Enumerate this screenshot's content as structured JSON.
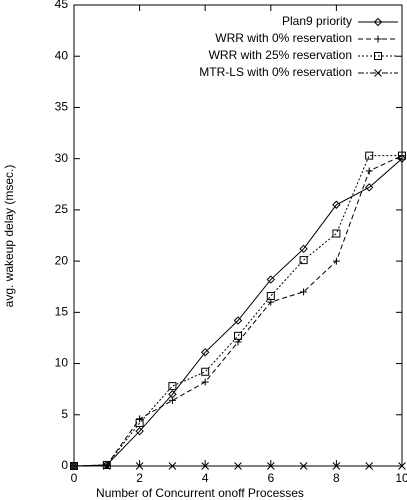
{
  "chart_data": {
    "type": "line",
    "xlabel": "Number of Concurrent onoff Processes",
    "ylabel": "avg. wakeup delay (msec.)",
    "x": [
      0,
      1,
      2,
      3,
      4,
      5,
      6,
      7,
      8,
      9,
      10
    ],
    "xlim": [
      0,
      10
    ],
    "xticks": [
      0,
      2,
      4,
      6,
      8,
      10
    ],
    "ylim": [
      0,
      45
    ],
    "yticks": [
      0,
      5,
      10,
      15,
      20,
      25,
      30,
      35,
      40,
      45
    ],
    "legend": "upper right",
    "series": [
      {
        "name": "Plan9 priority",
        "color": "#000000",
        "marker": "diamond",
        "dash": "solid",
        "values": [
          0,
          0.1,
          3.4,
          7.0,
          11.1,
          14.2,
          18.2,
          21.2,
          25.5,
          27.2,
          30.0
        ]
      },
      {
        "name": "WRR with 0% reservation",
        "color": "#000000",
        "marker": "plus",
        "dash": "dashed",
        "values": [
          0,
          0.1,
          4.6,
          6.4,
          8.2,
          12.1,
          16.0,
          17.0,
          20.0,
          28.8,
          30.3
        ]
      },
      {
        "name": "WRR with 25% reservation",
        "color": "#000000",
        "marker": "square",
        "dash": "dotted",
        "values": [
          0,
          0.1,
          4.2,
          7.8,
          9.2,
          12.7,
          16.6,
          20.1,
          22.7,
          30.3,
          30.3
        ]
      },
      {
        "name": "MTR-LS with 0% reservation",
        "color": "#000000",
        "marker": "x",
        "dash": "dashdot",
        "values": [
          0,
          0,
          0,
          0,
          0,
          0,
          0,
          0,
          0,
          0,
          0
        ]
      }
    ]
  }
}
